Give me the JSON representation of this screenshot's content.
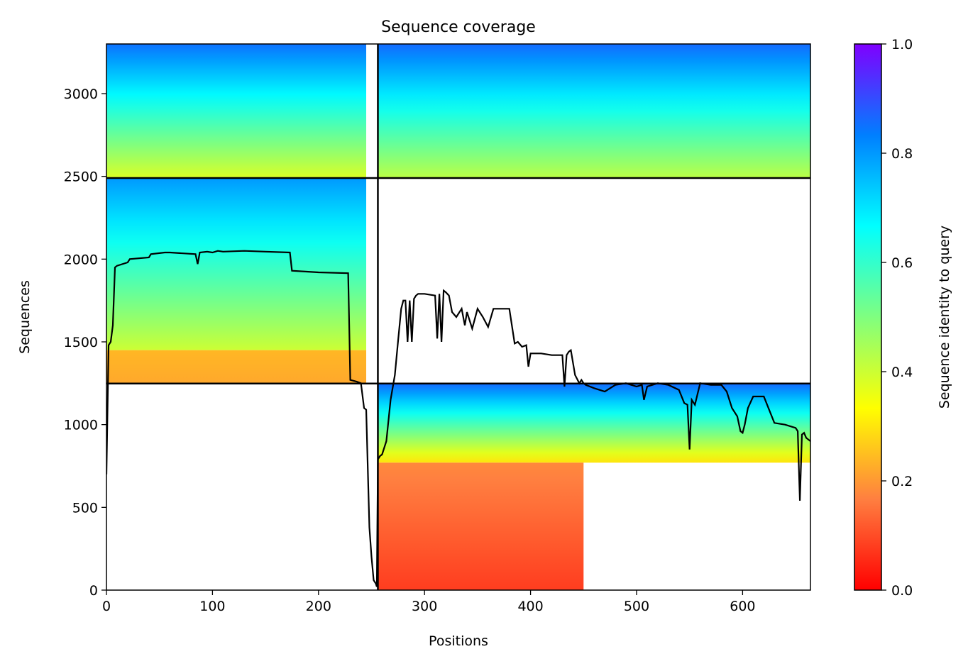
{
  "chart_data": {
    "type": "heatmap",
    "title": "Sequence coverage",
    "xlabel": "Positions",
    "ylabel": "Sequences",
    "xlim": [
      0,
      664
    ],
    "ylim": [
      0,
      3300
    ],
    "xticks": [
      0,
      100,
      200,
      300,
      400,
      500,
      600
    ],
    "yticks": [
      0,
      500,
      1000,
      1500,
      2000,
      2500,
      3000
    ],
    "grid": false,
    "colorbar": {
      "label": "Sequence identity to query",
      "range": [
        0,
        1
      ],
      "ticks": [
        0.0,
        0.2,
        0.4,
        0.6,
        0.8,
        1.0
      ],
      "tick_labels": [
        "0.0",
        "0.2",
        "0.4",
        "0.6",
        "0.8",
        "1.0"
      ],
      "colormap": "rainbow_r",
      "colors": [
        "#ff0000",
        "#ff7f40",
        "#ffff00",
        "#7fff80",
        "#00ffff",
        "#007fff",
        "#8000ff"
      ]
    },
    "chain_break_position": 256,
    "block_boundaries": [
      1248,
      2490
    ],
    "coverage_blocks": [
      {
        "x": [
          0,
          245
        ],
        "y": [
          2490,
          3300
        ],
        "identity_bottom": 0.38,
        "identity_top": 0.85
      },
      {
        "x": [
          256,
          664
        ],
        "y": [
          2490,
          3300
        ],
        "identity_bottom": 0.42,
        "identity_top": 0.86
      },
      {
        "x": [
          0,
          245
        ],
        "y": [
          1450,
          2490
        ],
        "identity_bottom": 0.4,
        "identity_top": 0.8
      },
      {
        "x": [
          0,
          245
        ],
        "y": [
          1248,
          1450
        ],
        "identity_bottom": 0.22,
        "identity_top": 0.24
      },
      {
        "x": [
          256,
          664
        ],
        "y": [
          770,
          1248
        ],
        "identity_bottom": 0.3,
        "identity_top": 0.86
      },
      {
        "x": [
          256,
          450
        ],
        "y": [
          0,
          770
        ],
        "identity_bottom": 0.08,
        "identity_top": 0.18
      }
    ],
    "coverage_line": {
      "color": "#000000",
      "x": [
        0,
        2,
        4,
        6,
        8,
        10,
        20,
        22,
        40,
        42,
        55,
        60,
        84,
        86,
        88,
        95,
        100,
        105,
        110,
        130,
        150,
        173,
        175,
        200,
        228,
        230,
        236,
        240,
        243,
        245,
        248,
        250,
        252,
        254,
        255,
        256,
        258,
        260,
        264,
        268,
        272,
        275,
        278,
        280,
        282,
        284,
        286,
        288,
        290,
        292,
        294,
        300,
        310,
        312,
        314,
        316,
        318,
        320,
        323,
        326,
        330,
        335,
        338,
        340,
        345,
        350,
        355,
        360,
        365,
        370,
        380,
        385,
        388,
        392,
        396,
        398,
        400,
        410,
        420,
        430,
        432,
        434,
        436,
        438,
        442,
        446,
        448,
        450,
        452,
        460,
        470,
        480,
        490,
        500,
        505,
        507,
        510,
        520,
        530,
        540,
        545,
        548,
        550,
        552,
        555,
        560,
        570,
        580,
        585,
        590,
        595,
        598,
        600,
        602,
        605,
        610,
        615,
        620,
        630,
        640,
        650,
        652,
        654,
        656,
        658,
        660,
        662,
        664
      ],
      "y": [
        700,
        1480,
        1500,
        1600,
        1950,
        1960,
        1980,
        2000,
        2010,
        2030,
        2040,
        2040,
        2030,
        1970,
        2040,
        2045,
        2040,
        2050,
        2045,
        2050,
        2045,
        2040,
        1930,
        1920,
        1915,
        1270,
        1260,
        1250,
        1100,
        1090,
        380,
        200,
        60,
        40,
        20,
        790,
        810,
        820,
        900,
        1150,
        1300,
        1500,
        1700,
        1750,
        1750,
        1500,
        1750,
        1500,
        1760,
        1780,
        1790,
        1790,
        1780,
        1520,
        1790,
        1500,
        1810,
        1800,
        1780,
        1680,
        1650,
        1700,
        1600,
        1680,
        1580,
        1700,
        1650,
        1590,
        1700,
        1700,
        1700,
        1490,
        1500,
        1470,
        1480,
        1350,
        1430,
        1430,
        1420,
        1420,
        1230,
        1420,
        1440,
        1450,
        1300,
        1250,
        1270,
        1250,
        1240,
        1220,
        1200,
        1240,
        1250,
        1230,
        1240,
        1150,
        1230,
        1250,
        1240,
        1210,
        1130,
        1120,
        850,
        1150,
        1120,
        1250,
        1240,
        1240,
        1200,
        1100,
        1050,
        960,
        950,
        1000,
        1100,
        1170,
        1170,
        1170,
        1010,
        1000,
        980,
        960,
        540,
        940,
        950,
        920,
        910,
        900
      ]
    }
  }
}
